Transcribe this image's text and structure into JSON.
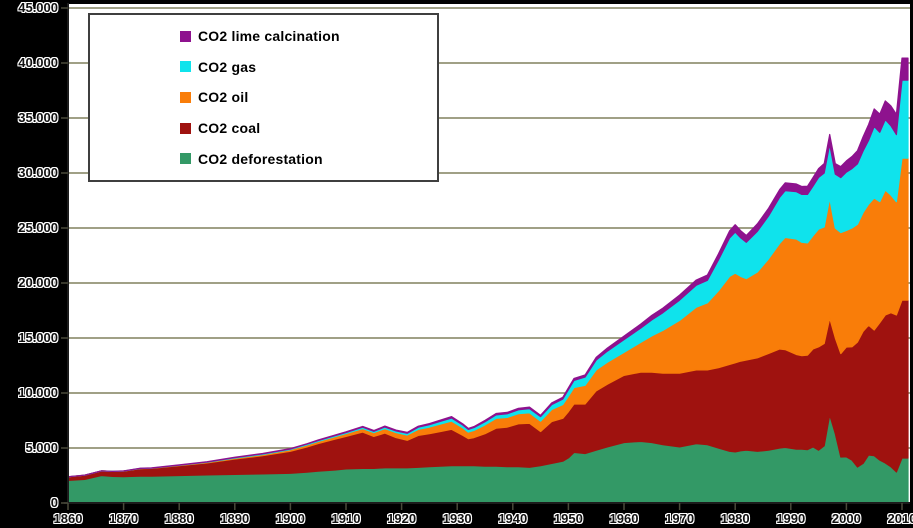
{
  "colors": {
    "background": "#000000",
    "plot_background": "#ffffff",
    "gridline": "#80805E",
    "axis": "#1c1c1c",
    "tick": "#4a4a3a"
  },
  "legend": {
    "items": [
      {
        "label": "CO2 lime calcination",
        "color": "#8E128E"
      },
      {
        "label": "CO2 gas",
        "color": "#0FE3EC"
      },
      {
        "label": "CO2 oil",
        "color": "#F97D09"
      },
      {
        "label": "CO2 coal",
        "color": "#9F120F"
      },
      {
        "label": "CO2 deforestation",
        "color": "#339966"
      }
    ]
  },
  "axes": {
    "y_tick_labels": [
      "45.000",
      "40.000",
      "35.000",
      "30.000",
      "25.000",
      "20.000",
      "15.000",
      "10.000",
      "5.000",
      "0"
    ],
    "y_tick_values": [
      45000,
      40000,
      35000,
      30000,
      25000,
      20000,
      15000,
      10000,
      5000,
      0
    ],
    "x_tick_labels": [
      "1860",
      "1870",
      "1880",
      "1890",
      "1900",
      "1910",
      "1920",
      "1930",
      "1940",
      "1950",
      "1960",
      "1970",
      "1980",
      "1990",
      "2000",
      "2010"
    ],
    "x_tick_values": [
      1860,
      1870,
      1880,
      1890,
      1900,
      1910,
      1920,
      1930,
      1940,
      1950,
      1960,
      1970,
      1980,
      1990,
      2000,
      2010
    ]
  },
  "chart_data": {
    "type": "area",
    "stacked": true,
    "title": "",
    "xlabel": "",
    "ylabel": "",
    "xlim": [
      1860,
      2010
    ],
    "ylim": [
      0,
      45000
    ],
    "grid": true,
    "legend_position": "top-left",
    "x": [
      1860,
      1863,
      1866,
      1868,
      1870,
      1873,
      1875,
      1880,
      1885,
      1890,
      1895,
      1900,
      1903,
      1905,
      1908,
      1910,
      1913,
      1915,
      1917,
      1919,
      1921,
      1923,
      1925,
      1927,
      1929,
      1931,
      1932,
      1933,
      1935,
      1937,
      1939,
      1941,
      1943,
      1945,
      1947,
      1949,
      1950,
      1951,
      1953,
      1955,
      1957,
      1960,
      1963,
      1965,
      1967,
      1970,
      1973,
      1975,
      1977,
      1979,
      1980,
      1981,
      1982,
      1984,
      1986,
      1988,
      1989,
      1991,
      1992,
      1993,
      1994,
      1995,
      1996,
      1997,
      1998,
      1999,
      2000,
      2001,
      2002,
      2003,
      2004,
      2005,
      2006,
      2007,
      2008,
      2009,
      2010
    ],
    "series": [
      {
        "name": "CO2 deforestation",
        "color": "#339966",
        "values": [
          2050,
          2150,
          2500,
          2420,
          2400,
          2450,
          2450,
          2500,
          2550,
          2600,
          2650,
          2700,
          2800,
          2900,
          3000,
          3100,
          3150,
          3150,
          3200,
          3200,
          3200,
          3250,
          3300,
          3350,
          3400,
          3400,
          3400,
          3400,
          3350,
          3350,
          3300,
          3300,
          3250,
          3400,
          3600,
          3800,
          4100,
          4600,
          4500,
          4800,
          5100,
          5500,
          5600,
          5500,
          5300,
          5100,
          5400,
          5300,
          5000,
          4700,
          4650,
          4750,
          4800,
          4700,
          4800,
          5000,
          5050,
          4900,
          4900,
          4850,
          5100,
          4800,
          5200,
          8000,
          6300,
          4180,
          4200,
          3900,
          3270,
          3600,
          4360,
          4300,
          3900,
          3640,
          3300,
          2820,
          4090
        ]
      },
      {
        "name": "CO2 coal",
        "color": "#9F120F",
        "values": [
          330,
          380,
          420,
          450,
          500,
          680,
          700,
          900,
          1100,
          1400,
          1650,
          2000,
          2300,
          2500,
          2800,
          2950,
          3300,
          2900,
          3150,
          2750,
          2500,
          2900,
          3000,
          3150,
          3300,
          2750,
          2450,
          2550,
          2950,
          3450,
          3600,
          3900,
          4000,
          3100,
          3800,
          3900,
          4200,
          4400,
          4500,
          5400,
          5700,
          6100,
          6300,
          6400,
          6500,
          6700,
          6700,
          6800,
          7300,
          7900,
          8100,
          8150,
          8200,
          8500,
          8800,
          9000,
          8900,
          8600,
          8500,
          8600,
          8900,
          9400,
          9300,
          8800,
          8700,
          9400,
          9980,
          10300,
          11370,
          12000,
          11800,
          11430,
          12500,
          13450,
          14000,
          14270,
          14360
        ]
      },
      {
        "name": "CO2 oil",
        "color": "#F97D09",
        "values": [
          0,
          0,
          0,
          0,
          5,
          10,
          15,
          30,
          50,
          80,
          110,
          150,
          180,
          200,
          230,
          260,
          320,
          350,
          420,
          450,
          480,
          550,
          600,
          680,
          750,
          680,
          600,
          650,
          800,
          900,
          880,
          920,
          950,
          950,
          1100,
          1250,
          1400,
          1500,
          1700,
          1900,
          2000,
          2100,
          2700,
          3300,
          3900,
          4800,
          5700,
          6100,
          7000,
          8000,
          8150,
          7700,
          7400,
          7800,
          8600,
          9600,
          10200,
          10500,
          10300,
          10200,
          10300,
          10700,
          10600,
          10900,
          10000,
          11000,
          10600,
          10800,
          10700,
          10800,
          11000,
          12000,
          11000,
          11360,
          10700,
          10300,
          12900
        ]
      },
      {
        "name": "CO2 gas",
        "color": "#0FE3EC",
        "values": [
          0,
          0,
          0,
          0,
          0,
          5,
          10,
          20,
          30,
          50,
          55,
          60,
          70,
          75,
          90,
          100,
          120,
          120,
          140,
          150,
          160,
          190,
          220,
          250,
          280,
          260,
          240,
          250,
          290,
          310,
          330,
          350,
          380,
          400,
          450,
          500,
          600,
          650,
          750,
          900,
          1000,
          1150,
          1300,
          1450,
          1600,
          1850,
          2000,
          2050,
          2800,
          3500,
          3730,
          3500,
          3300,
          3700,
          3900,
          4200,
          4250,
          4300,
          4350,
          4400,
          4500,
          4700,
          4900,
          4900,
          4900,
          5000,
          5300,
          5400,
          5500,
          5600,
          5800,
          6500,
          6300,
          6400,
          6300,
          6100,
          7100
        ]
      },
      {
        "name": "CO2 lime calcination",
        "color": "#8E128E",
        "values": [
          10,
          10,
          10,
          10,
          10,
          15,
          15,
          20,
          25,
          30,
          35,
          40,
          45,
          50,
          55,
          60,
          70,
          70,
          80,
          80,
          80,
          90,
          100,
          110,
          120,
          100,
          90,
          100,
          120,
          130,
          130,
          140,
          140,
          120,
          150,
          160,
          170,
          180,
          200,
          250,
          280,
          320,
          360,
          400,
          420,
          450,
          470,
          480,
          550,
          640,
          670,
          650,
          620,
          680,
          700,
          700,
          700,
          700,
          720,
          750,
          780,
          800,
          850,
          900,
          950,
          1000,
          1020,
          1100,
          1200,
          1300,
          1450,
          1600,
          1650,
          1700,
          1800,
          1850,
          2000
        ]
      }
    ]
  }
}
